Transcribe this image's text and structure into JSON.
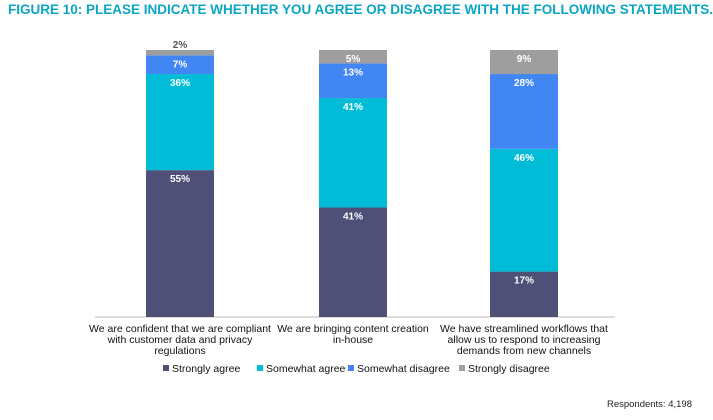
{
  "title": "FIGURE 10: PLEASE INDICATE WHETHER YOU AGREE OR DISAGREE WITH THE FOLLOWING STATEMENTS.",
  "footnote": "Respondents: 4,198",
  "colors": {
    "title": "#0aa6c4",
    "strongly_agree": "#4e5078",
    "somewhat_agree": "#00bcd6",
    "somewhat_disagree": "#4286f4",
    "strongly_disagree": "#9e9e9e"
  },
  "chart_data": {
    "type": "bar",
    "stacked": true,
    "value_suffix": "%",
    "categories": [
      [
        "We are confident that we are compliant",
        "with customer data and privacy",
        "regulations"
      ],
      [
        "We are bringing content creation",
        "in-house"
      ],
      [
        "We have streamlined workflows that",
        "allow us to respond to increasing",
        "demands from new channels"
      ]
    ],
    "series": [
      {
        "name": "Strongly agree",
        "color": "#4e5078",
        "label_color": "#ffffff",
        "values": [
          55,
          41,
          17
        ]
      },
      {
        "name": "Somewhat agree",
        "color": "#00bcd6",
        "label_color": "#ffffff",
        "values": [
          36,
          41,
          46
        ]
      },
      {
        "name": "Somewhat disagree",
        "color": "#4286f4",
        "label_color": "#ffffff",
        "values": [
          7,
          13,
          28
        ]
      },
      {
        "name": "Strongly disagree",
        "color": "#9e9e9e",
        "label_color": "#ffffff",
        "values": [
          2,
          5,
          9
        ]
      }
    ],
    "ylim": [
      0,
      100
    ],
    "grid": false,
    "legend_position": "bottom"
  }
}
